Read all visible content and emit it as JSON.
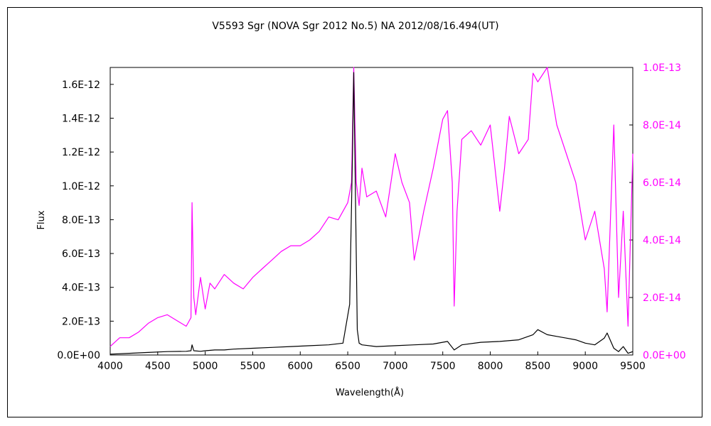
{
  "chart_data": {
    "type": "line",
    "title": "V5593 Sgr (NOVA Sgr 2012 No.5)    NA    2012/08/16.494(UT)",
    "xlabel": "Wavelength(Å)",
    "ylabel": "Flux",
    "xlim": [
      4000,
      9500
    ],
    "ylim_left": [
      0,
      1.7e-12
    ],
    "ylim_right": [
      0,
      1e-13
    ],
    "x_ticks": [
      "4000",
      "4500",
      "5000",
      "5500",
      "6000",
      "6500",
      "7000",
      "7500",
      "8000",
      "8500",
      "9000",
      "9500"
    ],
    "y_ticks_left": [
      "0.0E+00",
      "2.0E-13",
      "4.0E-13",
      "6.0E-13",
      "8.0E-13",
      "1.0E-12",
      "1.2E-12",
      "1.4E-12",
      "1.6E-12"
    ],
    "y_ticks_right": [
      "0.0E+00",
      "2.0E-14",
      "4.0E-14",
      "6.0E-14",
      "8.0E-14",
      "1.0E-13"
    ],
    "colors": {
      "left_series": "#000000",
      "right_series": "#ff00ff"
    },
    "series": [
      {
        "axis": "left",
        "color": "#000000",
        "x": [
          4000,
          4200,
          4400,
          4600,
          4800,
          4850,
          4861,
          4880,
          4950,
          5000,
          5100,
          5200,
          5300,
          5500,
          5700,
          5900,
          6100,
          6300,
          6450,
          6520,
          6550,
          6563,
          6575,
          6600,
          6620,
          6650,
          6800,
          7000,
          7200,
          7400,
          7550,
          7620,
          7700,
          7900,
          8100,
          8300,
          8450,
          8500,
          8600,
          8700,
          8800,
          8900,
          9000,
          9100,
          9200,
          9230,
          9300,
          9350,
          9400,
          9450,
          9500
        ],
        "y": [
          5e-15,
          1e-14,
          1.5e-14,
          2e-14,
          2.2e-14,
          2.5e-14,
          6e-14,
          2.5e-14,
          2.2e-14,
          2.5e-14,
          3e-14,
          3e-14,
          3.5e-14,
          4e-14,
          4.5e-14,
          5e-14,
          5.5e-14,
          6e-14,
          7e-14,
          3e-13,
          1.2e-12,
          1.67e-12,
          1.2e-12,
          1.5e-13,
          7e-14,
          6e-14,
          5e-14,
          5.5e-14,
          6e-14,
          6.5e-14,
          8e-14,
          3e-14,
          6e-14,
          7.5e-14,
          8e-14,
          9e-14,
          1.2e-13,
          1.5e-13,
          1.2e-13,
          1.1e-13,
          1e-13,
          9e-14,
          7e-14,
          6e-14,
          1e-13,
          1.3e-13,
          4e-14,
          2e-14,
          5e-14,
          1e-14,
          2e-14
        ]
      },
      {
        "axis": "right",
        "color": "#ff00ff",
        "x": [
          4000,
          4100,
          4200,
          4300,
          4400,
          4500,
          4600,
          4700,
          4800,
          4850,
          4861,
          4880,
          4900,
          4950,
          5000,
          5050,
          5100,
          5200,
          5300,
          5400,
          5500,
          5600,
          5700,
          5800,
          5900,
          6000,
          6100,
          6200,
          6300,
          6400,
          6500,
          6540,
          6563,
          6590,
          6620,
          6650,
          6700,
          6800,
          6900,
          7000,
          7070,
          7150,
          7200,
          7300,
          7400,
          7500,
          7550,
          7600,
          7620,
          7650,
          7700,
          7800,
          7900,
          8000,
          8100,
          8150,
          8200,
          8300,
          8400,
          8450,
          8500,
          8600,
          8700,
          8800,
          8900,
          9000,
          9100,
          9200,
          9230,
          9300,
          9350,
          9400,
          9450,
          9500
        ],
        "y": [
          3e-15,
          6e-15,
          6e-15,
          8e-15,
          1.1e-14,
          1.3e-14,
          1.4e-14,
          1.2e-14,
          1e-14,
          1.3e-14,
          5.3e-14,
          2e-14,
          1.4e-14,
          2.7e-14,
          1.6e-14,
          2.5e-14,
          2.3e-14,
          2.8e-14,
          2.5e-14,
          2.3e-14,
          2.7e-14,
          3e-14,
          3.3e-14,
          3.6e-14,
          3.8e-14,
          3.8e-14,
          4e-14,
          4.3e-14,
          4.8e-14,
          4.7e-14,
          5.3e-14,
          6e-14,
          1e-13,
          6e-14,
          5.2e-14,
          6.5e-14,
          5.5e-14,
          5.7e-14,
          4.8e-14,
          7e-14,
          6e-14,
          5.3e-14,
          3.3e-14,
          5e-14,
          6.5e-14,
          8.2e-14,
          8.5e-14,
          6e-14,
          1.7e-14,
          5e-14,
          7.5e-14,
          7.8e-14,
          7.3e-14,
          8e-14,
          5e-14,
          6.5e-14,
          8.3e-14,
          7e-14,
          7.5e-14,
          9.8e-14,
          9.5e-14,
          1e-13,
          8e-14,
          7e-14,
          6e-14,
          4e-14,
          5e-14,
          3e-14,
          1.5e-14,
          8e-14,
          2e-14,
          5e-14,
          1e-14,
          7e-14
        ]
      }
    ]
  }
}
